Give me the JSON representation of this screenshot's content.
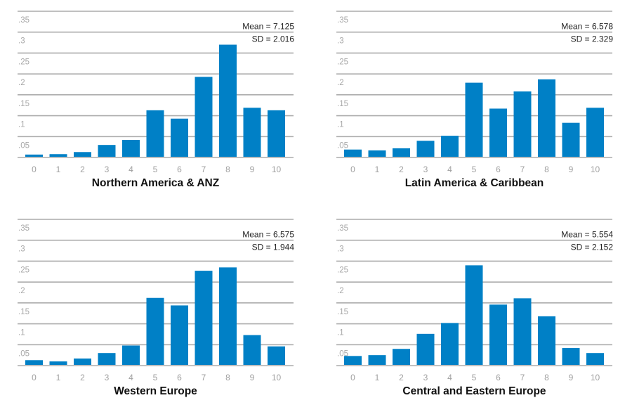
{
  "colors": {
    "bar": "#0080C6",
    "grid": "#acacac",
    "tick": "#a0a0a0",
    "text": "#111111"
  },
  "chart_data": [
    {
      "type": "bar",
      "title": "Northern America & ANZ",
      "xlabel": "",
      "ylabel": "",
      "categories": [
        "0",
        "1",
        "2",
        "3",
        "4",
        "5",
        "6",
        "7",
        "8",
        "9",
        "10"
      ],
      "values": [
        0.007,
        0.008,
        0.013,
        0.03,
        0.042,
        0.113,
        0.093,
        0.193,
        0.27,
        0.119,
        0.113
      ],
      "yticks": [
        0.05,
        0.1,
        0.15,
        0.2,
        0.25,
        0.3,
        0.35
      ],
      "ytick_labels": [
        ".05",
        ".1",
        ".15",
        ".2",
        ".25",
        ".3",
        ".35"
      ],
      "ylim": [
        0,
        0.35
      ],
      "grid": true,
      "annotations": {
        "mean": "Mean = 7.125",
        "sd": "SD = 2.016",
        "placement": "top-right"
      }
    },
    {
      "type": "bar",
      "title": "Latin America & Caribbean",
      "xlabel": "",
      "ylabel": "",
      "categories": [
        "0",
        "1",
        "2",
        "3",
        "4",
        "5",
        "6",
        "7",
        "8",
        "9",
        "10"
      ],
      "values": [
        0.019,
        0.017,
        0.022,
        0.04,
        0.052,
        0.179,
        0.117,
        0.158,
        0.187,
        0.083,
        0.119
      ],
      "yticks": [
        0.05,
        0.1,
        0.15,
        0.2,
        0.25,
        0.3,
        0.35
      ],
      "ytick_labels": [
        ".05",
        ".1",
        ".15",
        ".2",
        ".25",
        ".3",
        ".35"
      ],
      "ylim": [
        0,
        0.35
      ],
      "grid": true,
      "annotations": {
        "mean": "Mean = 6.578",
        "sd": "SD = 2.329",
        "placement": "top-right"
      }
    },
    {
      "type": "bar",
      "title": "Western Europe",
      "xlabel": "",
      "ylabel": "",
      "categories": [
        "0",
        "1",
        "2",
        "3",
        "4",
        "5",
        "6",
        "7",
        "8",
        "9",
        "10"
      ],
      "values": [
        0.013,
        0.01,
        0.017,
        0.03,
        0.048,
        0.162,
        0.144,
        0.227,
        0.235,
        0.073,
        0.046
      ],
      "yticks": [
        0.05,
        0.1,
        0.15,
        0.2,
        0.25,
        0.3,
        0.35
      ],
      "ytick_labels": [
        ".05",
        ".1",
        ".15",
        ".2",
        ".25",
        ".3",
        ".35"
      ],
      "ylim": [
        0,
        0.35
      ],
      "grid": true,
      "annotations": {
        "mean": "Mean = 6.575",
        "sd": "SD = 1.944",
        "placement": "top-right"
      }
    },
    {
      "type": "bar",
      "title": "Central and Eastern Europe",
      "xlabel": "",
      "ylabel": "",
      "categories": [
        "0",
        "1",
        "2",
        "3",
        "4",
        "5",
        "6",
        "7",
        "8",
        "9",
        "10"
      ],
      "values": [
        0.023,
        0.025,
        0.04,
        0.076,
        0.102,
        0.24,
        0.146,
        0.161,
        0.118,
        0.042,
        0.03
      ],
      "yticks": [
        0.05,
        0.1,
        0.15,
        0.2,
        0.25,
        0.3,
        0.35
      ],
      "ytick_labels": [
        ".05",
        ".1",
        ".15",
        ".2",
        ".25",
        ".3",
        ".35"
      ],
      "ylim": [
        0,
        0.35
      ],
      "grid": true,
      "annotations": {
        "mean": "Mean = 5.554",
        "sd": "SD = 2.152",
        "placement": "top-right"
      }
    }
  ]
}
